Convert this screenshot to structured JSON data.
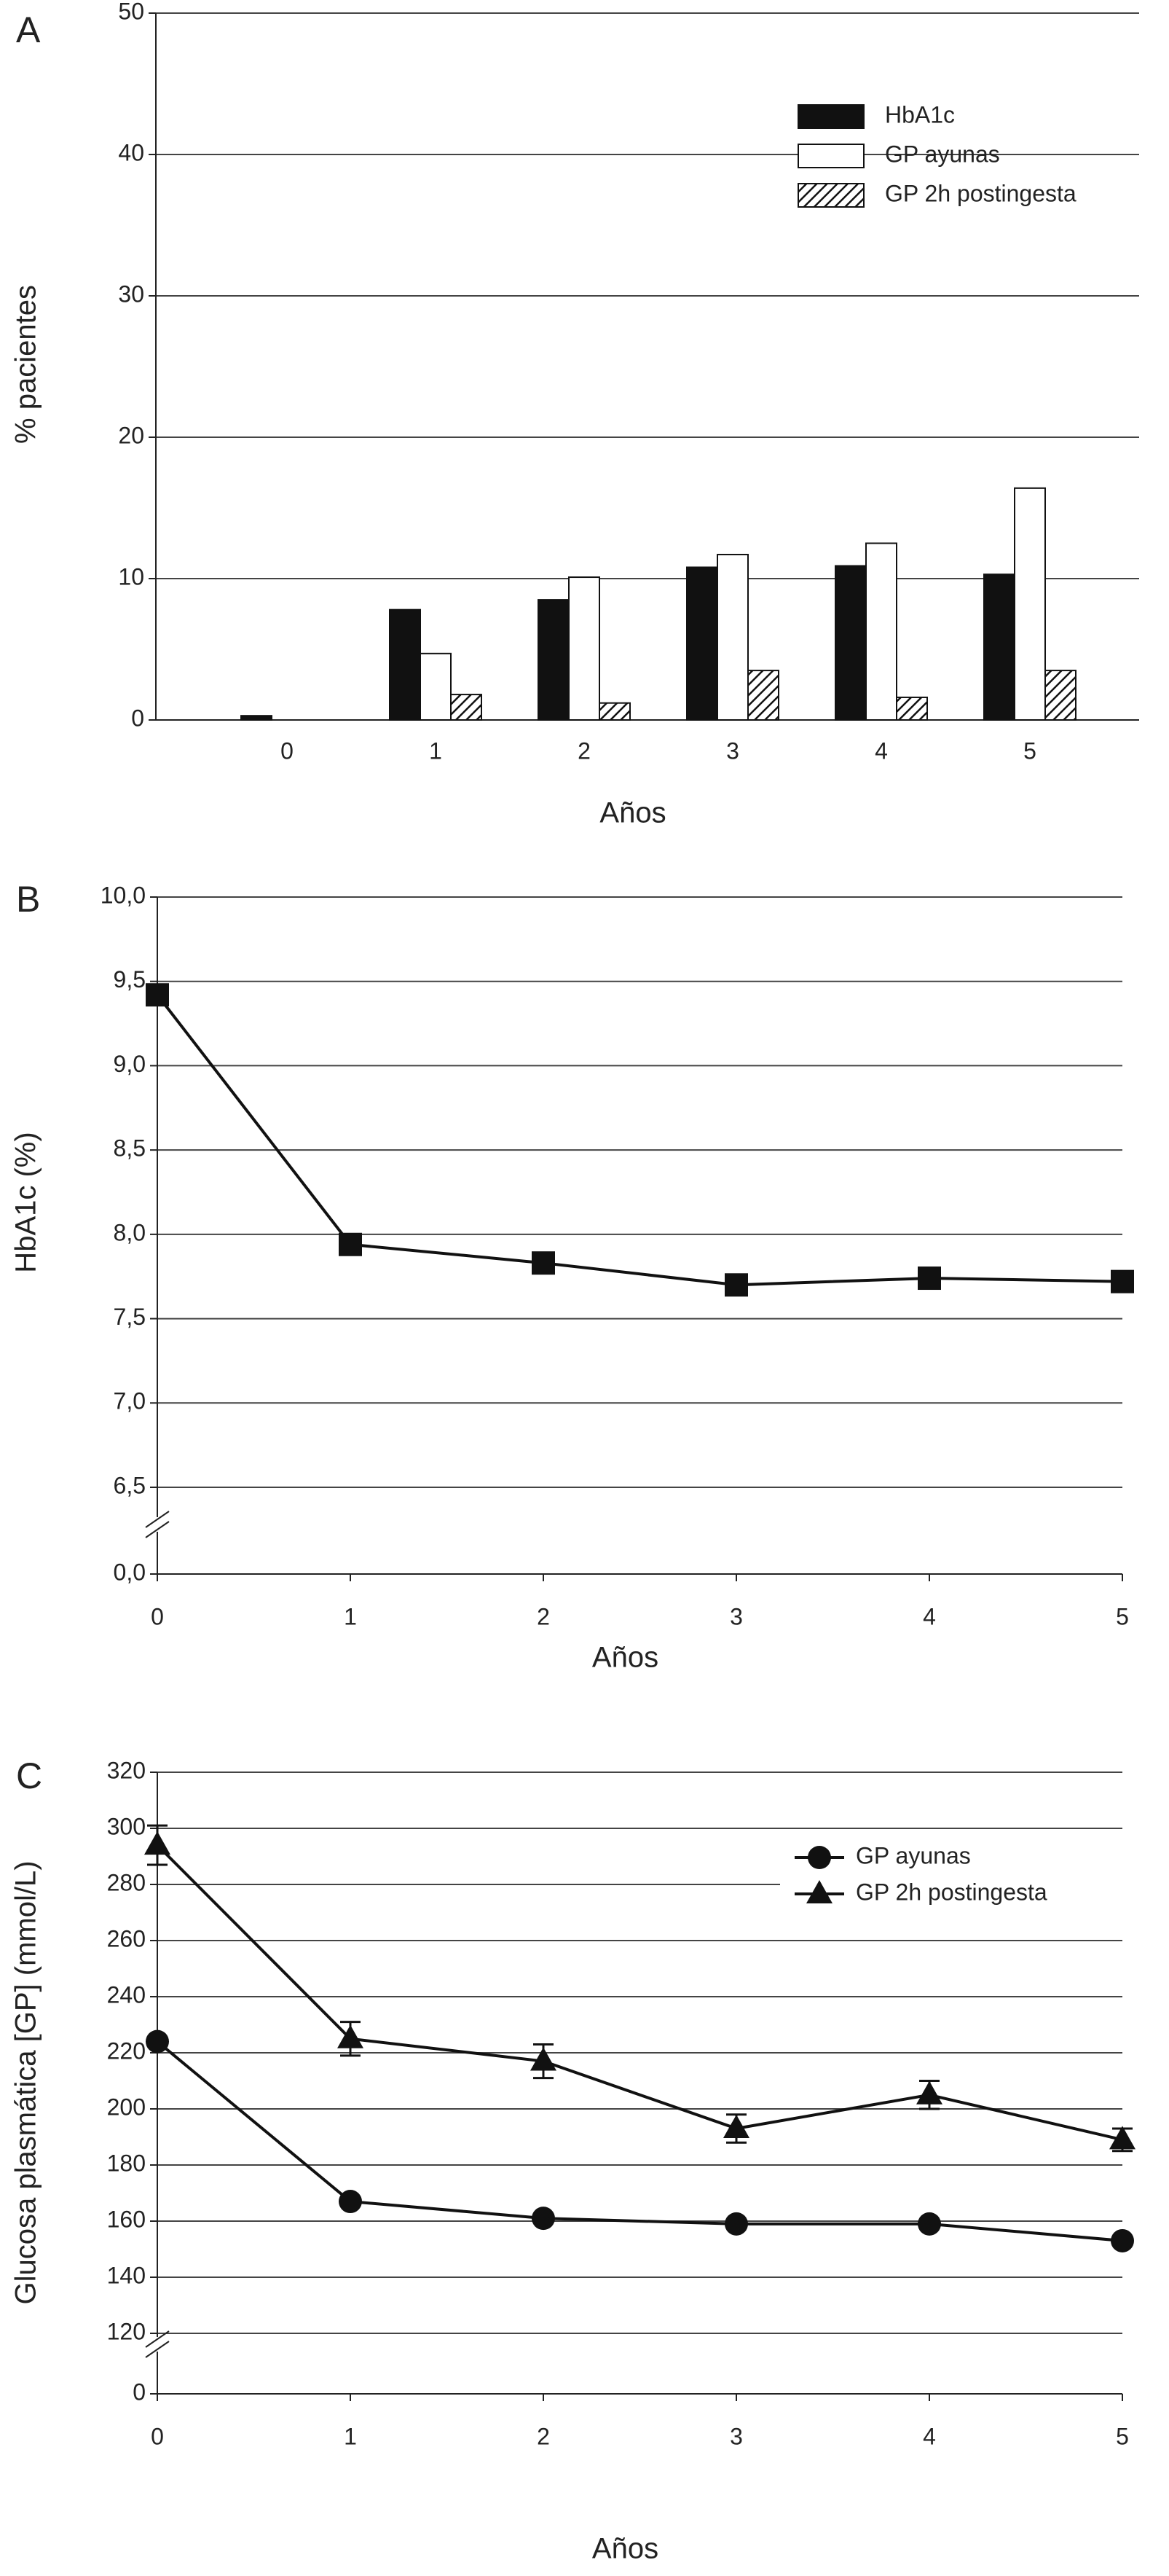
{
  "chart_data": [
    {
      "type": "bar",
      "panel": "A",
      "x_label": "Años",
      "y_label": "% pacientes",
      "categories": [
        "0",
        "1",
        "2",
        "3",
        "4",
        "5"
      ],
      "series": [
        {
          "name": "HbA1c",
          "color": "#111111",
          "fill": "solid",
          "values": [
            0.3,
            7.8,
            8.5,
            10.8,
            10.9,
            10.3
          ]
        },
        {
          "name": "GP ayunas",
          "color": "#ffffff",
          "fill": "solid",
          "values": [
            0,
            4.7,
            10.1,
            11.7,
            12.5,
            16.4
          ]
        },
        {
          "name": "GP 2h postingesta",
          "color": "#111111",
          "fill": "hatch",
          "values": [
            0,
            1.8,
            1.2,
            3.5,
            1.6,
            3.5
          ]
        }
      ],
      "ylim": [
        0,
        50
      ],
      "yticks": [
        0,
        10,
        20,
        30,
        40,
        50
      ],
      "grid": true,
      "legend": "upper-right"
    },
    {
      "type": "line",
      "panel": "B",
      "x_label": "Años",
      "y_label": "HbA1c (%)",
      "x": [
        0,
        1,
        2,
        3,
        4,
        5
      ],
      "xlim": [
        0,
        5
      ],
      "xticks": [
        0,
        1,
        2,
        3,
        4,
        5
      ],
      "series": [
        {
          "color": "#111111",
          "marker": "square",
          "values": [
            9.42,
            7.94,
            7.83,
            7.7,
            7.74,
            7.72
          ]
        }
      ],
      "ylim": [
        0,
        10
      ],
      "ybreak": [
        0,
        6.5
      ],
      "yticks": [
        {
          "value": 0,
          "label": "0,0"
        },
        {
          "value": 6.5,
          "label": "6,5"
        },
        {
          "value": 7,
          "label": "7,0"
        },
        {
          "value": 7.5,
          "label": "7,5"
        },
        {
          "value": 8,
          "label": "8,0"
        },
        {
          "value": 8.5,
          "label": "8,5"
        },
        {
          "value": 9,
          "label": "9,0"
        },
        {
          "value": 9.5,
          "label": "9,5"
        },
        {
          "value": 10,
          "label": "10,0"
        }
      ],
      "grid": true
    },
    {
      "type": "line",
      "panel": "C",
      "x_label": "Años",
      "y_label": "Glucosa plasmática [GP] (mmol/L)",
      "x": [
        0,
        1,
        2,
        3,
        4,
        5
      ],
      "xlim": [
        0,
        5
      ],
      "xticks": [
        0,
        1,
        2,
        3,
        4,
        5
      ],
      "series": [
        {
          "name": "GP ayunas",
          "color": "#111111",
          "marker": "circle",
          "values": [
            224,
            167,
            161,
            159,
            159,
            153
          ]
        },
        {
          "name": "GP 2h postingesta",
          "color": "#111111",
          "marker": "triangle",
          "values": [
            294,
            225,
            217,
            193,
            205,
            189
          ],
          "errors": [
            7,
            6,
            6,
            5,
            5,
            4
          ]
        }
      ],
      "ylim": [
        0,
        320
      ],
      "ybreak": [
        0,
        120
      ],
      "yticks": [
        0,
        120,
        140,
        160,
        180,
        200,
        220,
        240,
        260,
        280,
        300,
        320
      ],
      "grid": true,
      "legend": "upper-right"
    }
  ]
}
